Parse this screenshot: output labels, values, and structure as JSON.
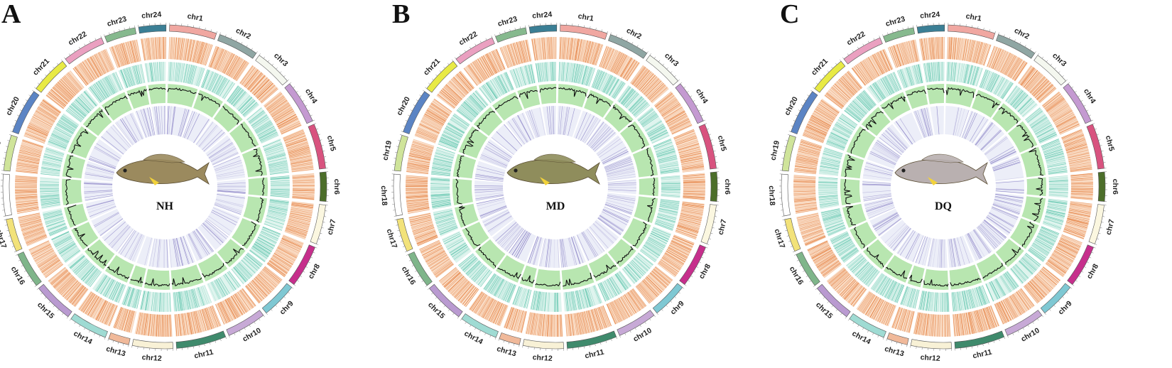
{
  "figure": {
    "panels": [
      {
        "letter": "A",
        "sample": "NH",
        "fish_color": "#9b8a5e",
        "seed": 11
      },
      {
        "letter": "B",
        "sample": "MD",
        "fish_color": "#8f8d5c",
        "seed": 29
      },
      {
        "letter": "C",
        "sample": "DQ",
        "fish_color": "#b9b0b0",
        "seed": 47
      }
    ],
    "chromosomes": [
      {
        "name": "chr1",
        "size": 1.0,
        "color": "#f0a7a1"
      },
      {
        "name": "chr2",
        "size": 0.86,
        "color": "#8fa6a3"
      },
      {
        "name": "chr3",
        "size": 0.8,
        "color": "#f4f7ef"
      },
      {
        "name": "chr4",
        "size": 0.92,
        "color": "#c49ad1"
      },
      {
        "name": "chr5",
        "size": 0.96,
        "color": "#d8537f"
      },
      {
        "name": "chr6",
        "size": 0.62,
        "color": "#4c6e2a"
      },
      {
        "name": "chr7",
        "size": 0.84,
        "color": "#fbf7e0"
      },
      {
        "name": "chr8",
        "size": 0.9,
        "color": "#c62f8c"
      },
      {
        "name": "chr9",
        "size": 0.76,
        "color": "#7fc8d3"
      },
      {
        "name": "chr10",
        "size": 0.84,
        "color": "#c7a9d6"
      },
      {
        "name": "chr11",
        "size": 1.06,
        "color": "#3f8a6c"
      },
      {
        "name": "chr12",
        "size": 0.86,
        "color": "#f8f1d6"
      },
      {
        "name": "chr13",
        "size": 0.44,
        "color": "#f0b99a"
      },
      {
        "name": "chr14",
        "size": 0.82,
        "color": "#9fdbd3"
      },
      {
        "name": "chr15",
        "size": 0.86,
        "color": "#b99ad0"
      },
      {
        "name": "chr16",
        "size": 0.76,
        "color": "#7fb58a"
      },
      {
        "name": "chr17",
        "size": 0.7,
        "color": "#f2e27a"
      },
      {
        "name": "chr18",
        "size": 0.88,
        "color": "#ffffff"
      },
      {
        "name": "chr19",
        "size": 0.76,
        "color": "#cfe49a"
      },
      {
        "name": "chr20",
        "size": 0.96,
        "color": "#5b84c4"
      },
      {
        "name": "chr21",
        "size": 0.8,
        "color": "#e8ea45"
      },
      {
        "name": "chr22",
        "size": 0.88,
        "color": "#eaa0c0"
      },
      {
        "name": "chr23",
        "size": 0.66,
        "color": "#86b98e"
      },
      {
        "name": "chr24",
        "size": 0.58,
        "color": "#3b7f95"
      }
    ],
    "track_colors": {
      "orange": "#e37b3a",
      "teal": "#35b597",
      "green_fill": "#b8e6b0",
      "line": "#111111",
      "purple": "#6b5fb5",
      "purple_bg": "#eceef8",
      "orange_bg": "#fbe3cf",
      "teal_bg": "#dff4ee"
    }
  }
}
